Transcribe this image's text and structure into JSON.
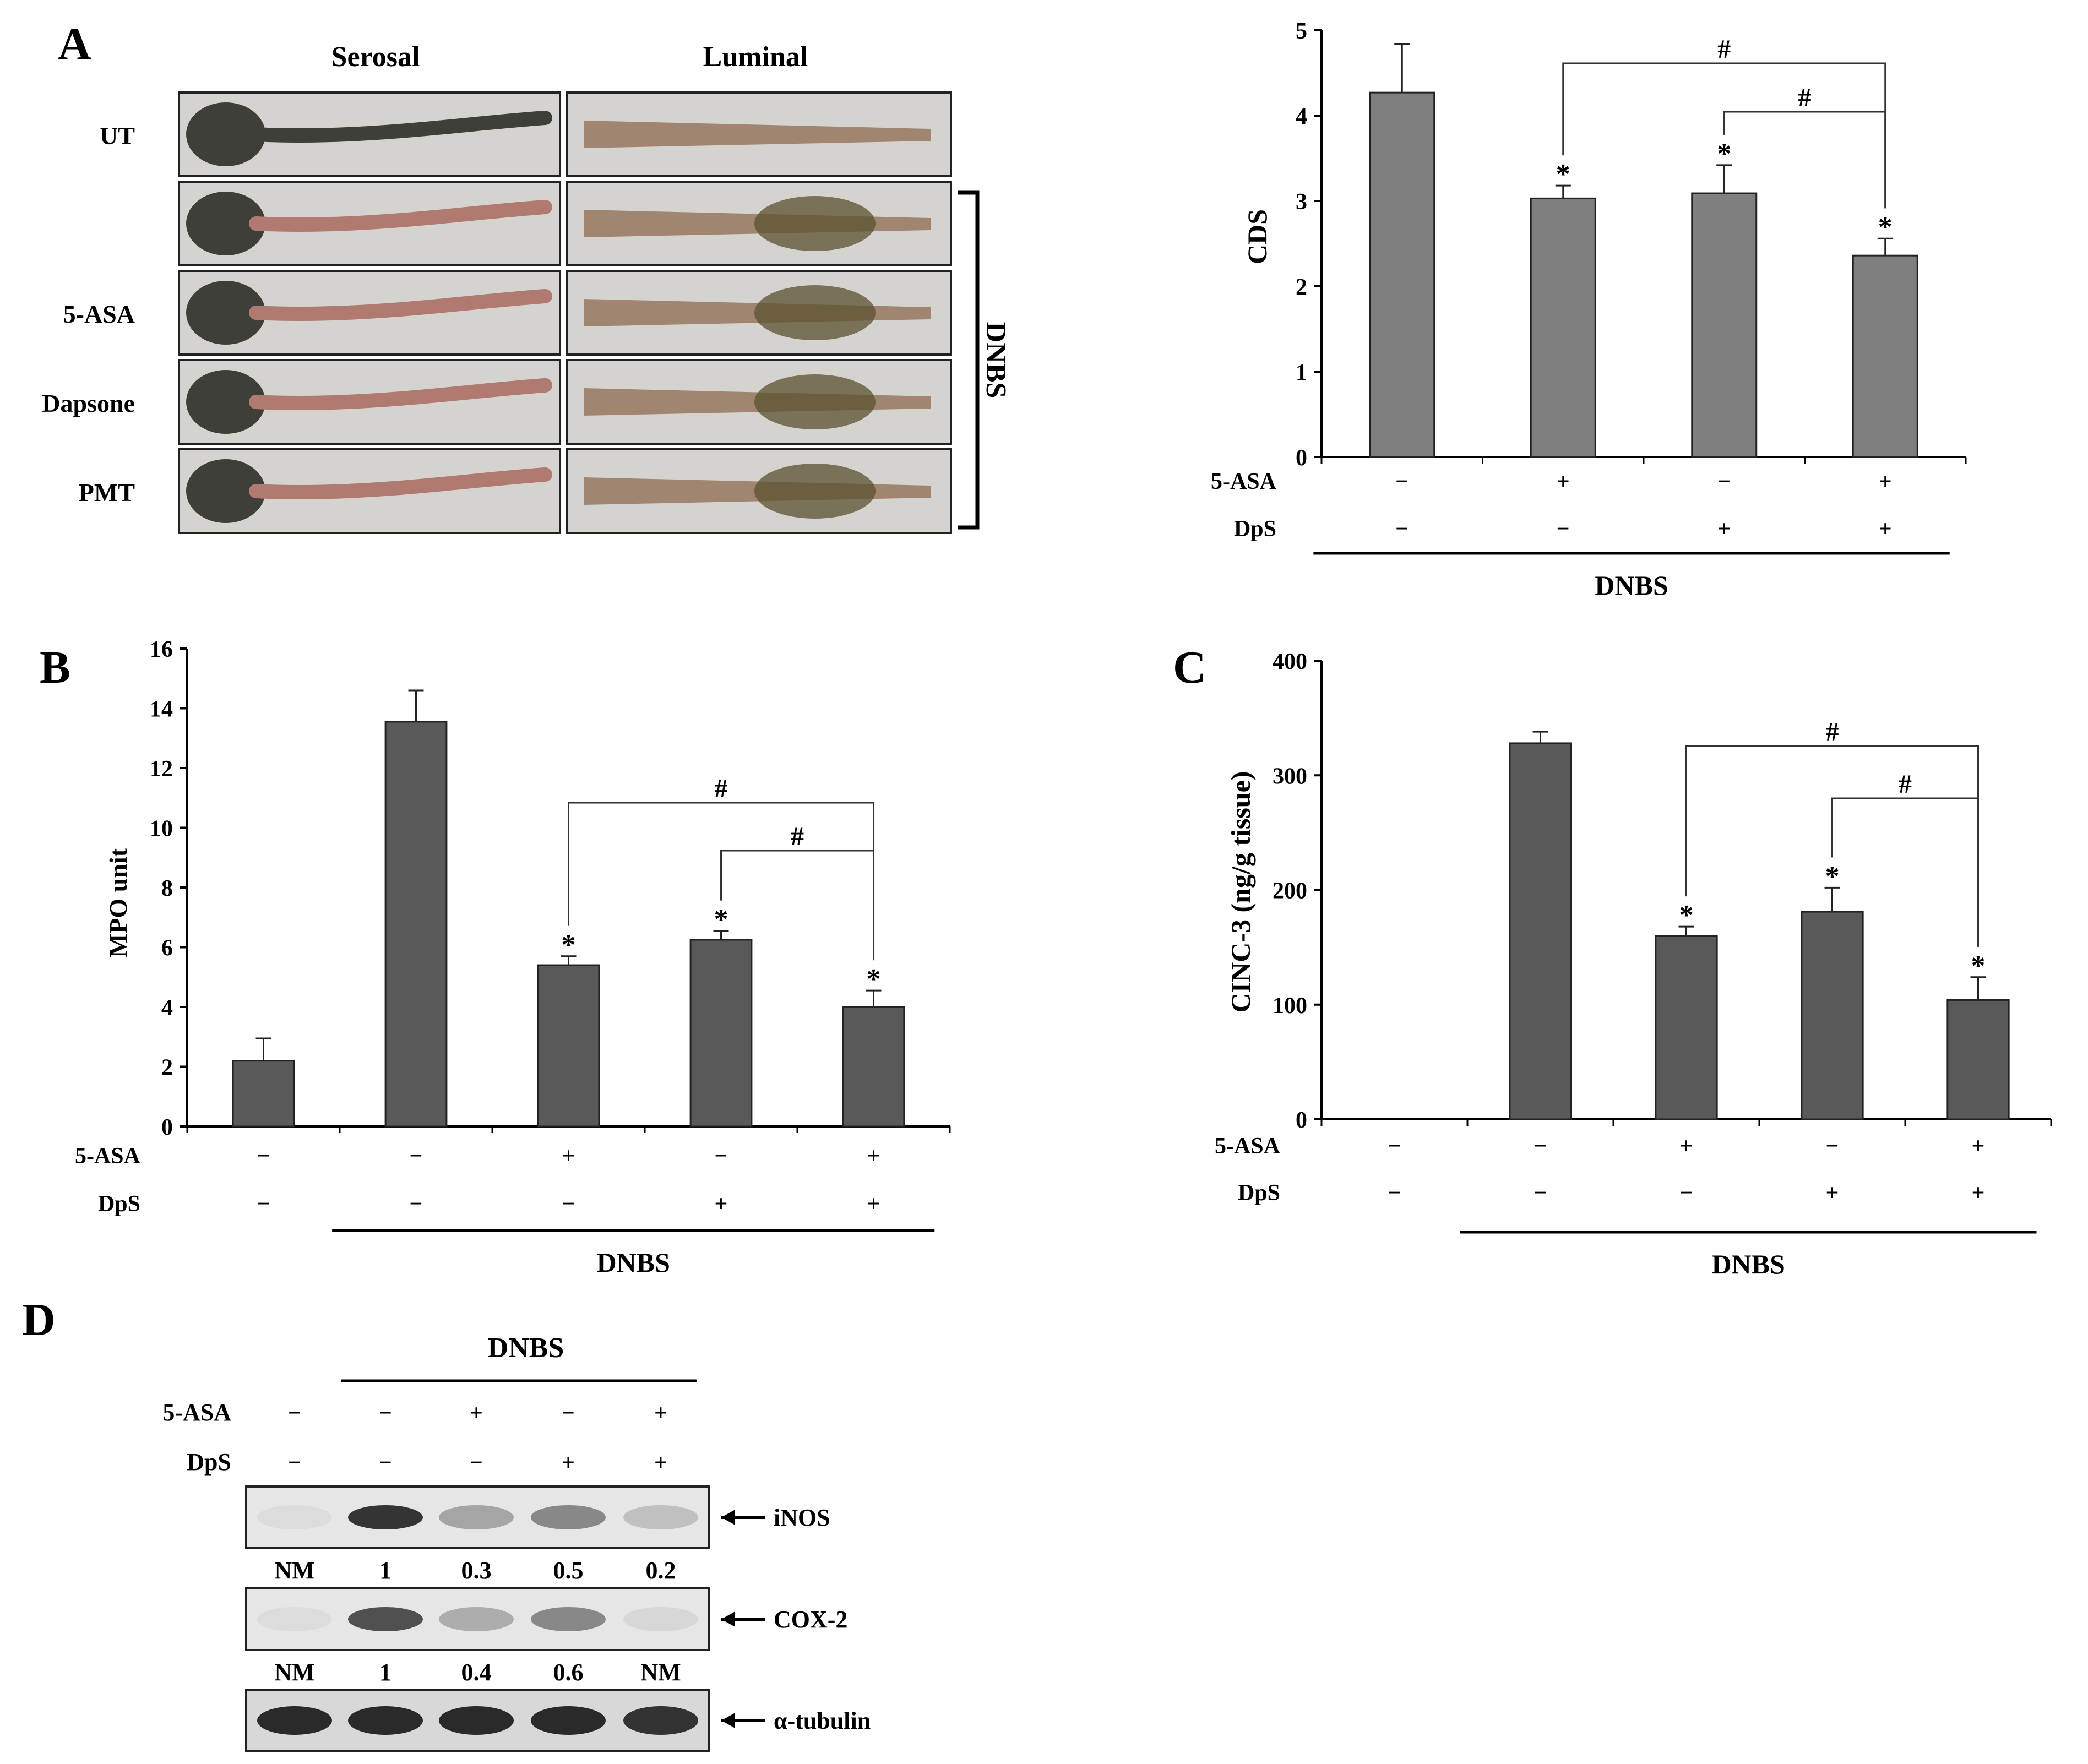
{
  "colors": {
    "bar_cds": "#7f7f7f",
    "bar_dark": "#595959",
    "axis": "#000000",
    "tissue_dark": "#3f3f3a",
    "tissue_light": "#a08670",
    "tissue_red": "#b07a70",
    "photo_bg": "#d5d3cf",
    "blot_bg": "#e6e6e6",
    "blot_band": "#2a2a2a"
  },
  "panel_labels": {
    "a": "A",
    "b": "B",
    "c": "C",
    "d": "D"
  },
  "panel_a": {
    "headers": {
      "serosal": "Serosal",
      "luminal": "Luminal"
    },
    "rows": [
      "UT",
      "",
      "5-ASA",
      "Dapsone",
      "PMT"
    ],
    "bracket_label": "DNBS"
  },
  "treatment_labels": {
    "asa": "5-ASA",
    "dps": "DpS",
    "dnbs": "DNBS",
    "minus": "−",
    "plus": "+"
  },
  "chart_data": [
    {
      "type": "bar",
      "id": "cds",
      "title": "",
      "ylabel": "CDS",
      "xlabel": "",
      "ylim": [
        0,
        5
      ],
      "yticks": [
        "0",
        "1",
        "2",
        "3",
        "4",
        "5"
      ],
      "asa": [
        "−",
        "+",
        "−",
        "+"
      ],
      "dps": [
        "−",
        "−",
        "+",
        "+"
      ],
      "values": [
        4.27,
        3.03,
        3.09,
        2.36
      ],
      "errors": [
        0.57,
        0.15,
        0.33,
        0.2
      ],
      "stars": [
        false,
        true,
        true,
        true
      ],
      "sig_marker": "#",
      "star": "*"
    },
    {
      "type": "bar",
      "id": "mpo",
      "title": "",
      "ylabel": "MPO unit",
      "xlabel": "",
      "ylim": [
        0,
        16
      ],
      "yticks": [
        "0",
        "2",
        "4",
        "6",
        "8",
        "10",
        "12",
        "14",
        "16"
      ],
      "asa": [
        "−",
        "−",
        "+",
        "−",
        "+"
      ],
      "dps": [
        "−",
        "−",
        "−",
        "+",
        "+"
      ],
      "values": [
        2.2,
        13.55,
        5.4,
        6.25,
        4.0
      ],
      "errors": [
        0.75,
        1.05,
        0.3,
        0.3,
        0.55
      ],
      "stars": [
        false,
        false,
        true,
        true,
        true
      ],
      "sig_marker": "#",
      "star": "*"
    },
    {
      "type": "bar",
      "id": "cinc",
      "title": "",
      "ylabel": "CINC-3 (ng/g tissue)",
      "xlabel": "",
      "ylim": [
        0,
        400
      ],
      "yticks": [
        "0",
        "100",
        "200",
        "300",
        "400"
      ],
      "asa": [
        "−",
        "−",
        "+",
        "−",
        "+"
      ],
      "dps": [
        "−",
        "−",
        "−",
        "+",
        "+"
      ],
      "values": [
        0,
        328,
        160,
        181,
        104
      ],
      "errors": [
        0,
        10,
        8,
        21,
        20
      ],
      "stars": [
        false,
        false,
        true,
        true,
        true
      ],
      "sig_marker": "#",
      "star": "*"
    }
  ],
  "panel_d": {
    "dnbs": "DNBS",
    "asa": [
      "−",
      "−",
      "+",
      "−",
      "+"
    ],
    "dps": [
      "−",
      "−",
      "−",
      "+",
      "+"
    ],
    "blots": [
      {
        "name": "iNOS",
        "values": [
          "NM",
          "1",
          "0.3",
          "0.5",
          "0.2"
        ],
        "intensity": [
          0.05,
          0.95,
          0.35,
          0.5,
          0.2
        ]
      },
      {
        "name": "COX-2",
        "values": [
          "NM",
          "1",
          "0.4",
          "0.6",
          "NM"
        ],
        "intensity": [
          0.05,
          0.8,
          0.3,
          0.5,
          0.08
        ]
      },
      {
        "name": "α-tubulin",
        "values": [],
        "intensity": [
          1,
          1,
          1,
          1,
          0.95
        ]
      }
    ]
  }
}
